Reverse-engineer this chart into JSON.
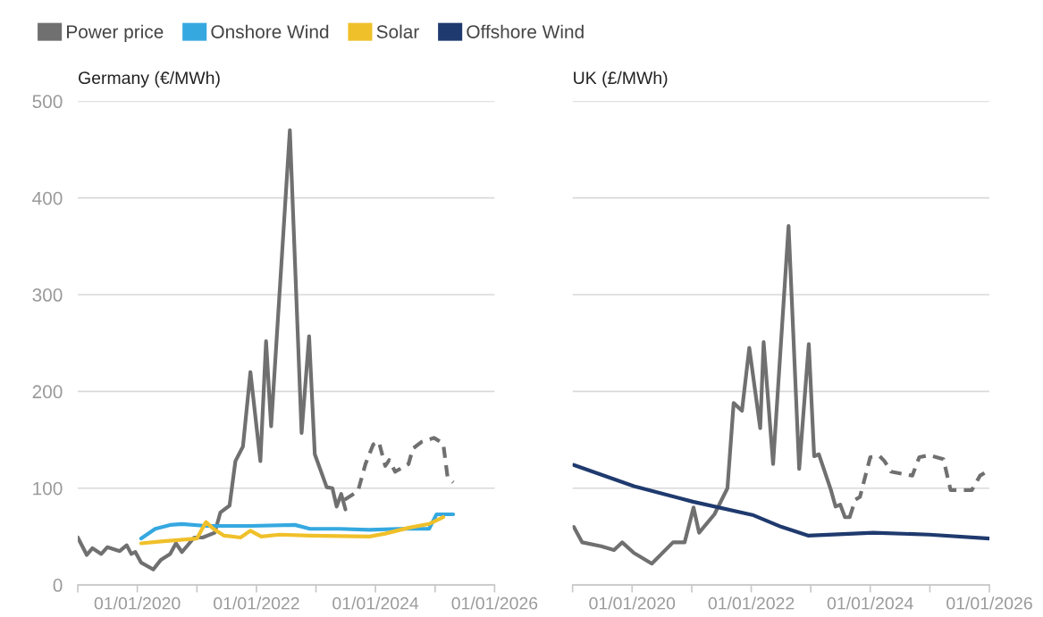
{
  "chart_data": [
    {
      "type": "line",
      "title": "Germany (€/MWh)",
      "ylim": [
        0,
        500
      ],
      "yticks": [
        0,
        100,
        200,
        300,
        400,
        500
      ],
      "xlim": [
        "2019-01-01",
        "2026-01-01"
      ],
      "xticks": [
        {
          "value": "2019-01-01",
          "label": null
        },
        {
          "value": "2020-01-01",
          "label": "01/01/2020"
        },
        {
          "value": "2021-01-01",
          "label": null
        },
        {
          "value": "2022-01-01",
          "label": "01/01/2022"
        },
        {
          "value": "2023-01-01",
          "label": null
        },
        {
          "value": "2024-01-01",
          "label": "01/01/2024"
        },
        {
          "value": "2025-01-01",
          "label": null
        },
        {
          "value": "2026-01-01",
          "label": "01/01/2026"
        }
      ],
      "grid": "y",
      "legend": "top left",
      "series": [
        {
          "name": "Power price",
          "color": "#707070",
          "line_style": "solid",
          "x": [
            "2019-01-01",
            "2019-02-25",
            "2019-04-01",
            "2019-05-25",
            "2019-07-01",
            "2019-09-15",
            "2019-10-28",
            "2019-11-25",
            "2019-12-20",
            "2020-01-25",
            "2020-04-08",
            "2020-05-25",
            "2020-07-20",
            "2020-08-25",
            "2020-10-01",
            "2020-12-15",
            "2021-02-05",
            "2021-04-20",
            "2021-05-25",
            "2021-07-20",
            "2021-08-25",
            "2021-10-10",
            "2021-11-25",
            "2022-01-25",
            "2022-03-01",
            "2022-04-01",
            "2022-07-25",
            "2022-10-05",
            "2022-11-20",
            "2022-12-25",
            "2023-03-08",
            "2023-04-12",
            "2023-05-08",
            "2023-06-05",
            "2023-07-01"
          ],
          "values": [
            49,
            31,
            38,
            32,
            39,
            35,
            41,
            32,
            34,
            23,
            16,
            26,
            32,
            43,
            34,
            49,
            49,
            54,
            75,
            82,
            128,
            143,
            220,
            128,
            252,
            164,
            470,
            157,
            257,
            135,
            101,
            100,
            81,
            94,
            78
          ]
        },
        {
          "color": "#707070",
          "line_style": "dashed",
          "x": [
            "2023-06-25",
            "2023-09-16",
            "2023-11-01",
            "2023-12-18",
            "2024-01-22",
            "2024-03-01",
            "2024-03-25",
            "2024-05-01",
            "2024-07-22",
            "2024-08-18",
            "2024-10-12",
            "2024-12-25",
            "2025-02-20",
            "2025-03-18",
            "2025-04-22"
          ],
          "values": [
            88,
            97,
            125,
            145,
            148,
            123,
            129,
            117,
            125,
            141,
            148,
            152,
            146,
            112,
            106
          ]
        },
        {
          "name": "Onshore Wind",
          "color": "#35a8e0",
          "line_style": "solid",
          "x": [
            "2020-01-25",
            "2020-04-20",
            "2020-07-20",
            "2020-10-01",
            "2021-02-25",
            "2021-11-25",
            "2022-08-25",
            "2022-11-25",
            "2023-05-25",
            "2023-11-25",
            "2024-05-25",
            "2024-11-25",
            "2025-01-10",
            "2025-04-22"
          ],
          "values": [
            48,
            58,
            62,
            63,
            61,
            61,
            62,
            58,
            58,
            57,
            58,
            58,
            73,
            73
          ]
        },
        {
          "name": "Solar",
          "color": "#f0c02a",
          "line_style": "solid",
          "x": [
            "2020-01-25",
            "2020-05-25",
            "2021-01-01",
            "2021-02-25",
            "2021-04-12",
            "2021-06-15",
            "2021-09-25",
            "2021-11-25",
            "2022-01-30",
            "2022-05-25",
            "2022-11-25",
            "2023-11-25",
            "2024-03-01",
            "2024-07-22",
            "2024-11-25",
            "2025-02-20"
          ],
          "values": [
            43,
            45,
            48,
            65,
            58,
            51,
            49,
            56,
            50,
            52,
            51,
            50,
            53,
            59,
            63,
            70
          ]
        }
      ]
    },
    {
      "type": "line",
      "title": "UK (£/MWh)",
      "ylim": [
        0,
        500
      ],
      "yticks": [
        0,
        100,
        200,
        300,
        400,
        500
      ],
      "tick_labels": "x",
      "xlim": [
        "2019-01-01",
        "2026-01-01"
      ],
      "xticks": [
        {
          "value": "2019-01-01",
          "label": null
        },
        {
          "value": "2020-01-01",
          "label": "01/01/2020"
        },
        {
          "value": "2021-01-01",
          "label": null
        },
        {
          "value": "2022-01-01",
          "label": "01/01/2022"
        },
        {
          "value": "2023-01-01",
          "label": null
        },
        {
          "value": "2024-01-01",
          "label": "01/01/2024"
        },
        {
          "value": "2025-01-01",
          "label": null
        },
        {
          "value": "2026-01-01",
          "label": "01/01/2026"
        }
      ],
      "grid": "y",
      "legend": "top left",
      "series": [
        {
          "color": "#707070",
          "line_style": "solid",
          "x": [
            "2019-01-08",
            "2019-03-01",
            "2019-06-25",
            "2019-09-12",
            "2019-11-01",
            "2020-01-12",
            "2020-05-01",
            "2020-09-08",
            "2020-11-18",
            "2021-01-12",
            "2021-02-15",
            "2021-05-20",
            "2021-08-08",
            "2021-09-15",
            "2021-11-05",
            "2021-12-20",
            "2022-02-25",
            "2022-03-18",
            "2022-05-15",
            "2022-08-18",
            "2022-10-22",
            "2022-12-20",
            "2023-01-22",
            "2023-02-20",
            "2023-05-05",
            "2023-06-02",
            "2023-07-01",
            "2023-07-30",
            "2023-08-28"
          ],
          "values": [
            60,
            44,
            40,
            36,
            44,
            33,
            22,
            44,
            44,
            80,
            54,
            73,
            100,
            188,
            180,
            245,
            162,
            251,
            125,
            371,
            120,
            249,
            133,
            135,
            98,
            81,
            83,
            70,
            70
          ]
        },
        {
          "color": "#707070",
          "line_style": "dashed",
          "x": [
            "2023-08-28",
            "2023-10-01",
            "2023-10-30",
            "2024-01-01",
            "2024-02-28",
            "2024-03-28",
            "2024-05-08",
            "2024-09-15",
            "2024-10-28",
            "2024-12-28",
            "2025-03-25",
            "2025-05-08",
            "2025-09-15",
            "2025-11-05",
            "2025-12-25"
          ],
          "values": [
            70,
            88,
            91,
            132,
            133,
            128,
            117,
            113,
            132,
            134,
            130,
            98,
            98,
            113,
            118
          ]
        },
        {
          "name": "Offshore Wind",
          "color": "#1f3a6e",
          "line_style": "solid",
          "x": [
            "2019-01-08",
            "2020-01-12",
            "2021-01-08",
            "2022-01-15",
            "2022-07-05",
            "2022-12-15",
            "2024-01-20",
            "2024-12-28",
            "2026-01-01"
          ],
          "values": [
            124,
            102,
            86,
            72,
            60,
            51,
            54,
            52,
            48
          ]
        }
      ]
    }
  ]
}
